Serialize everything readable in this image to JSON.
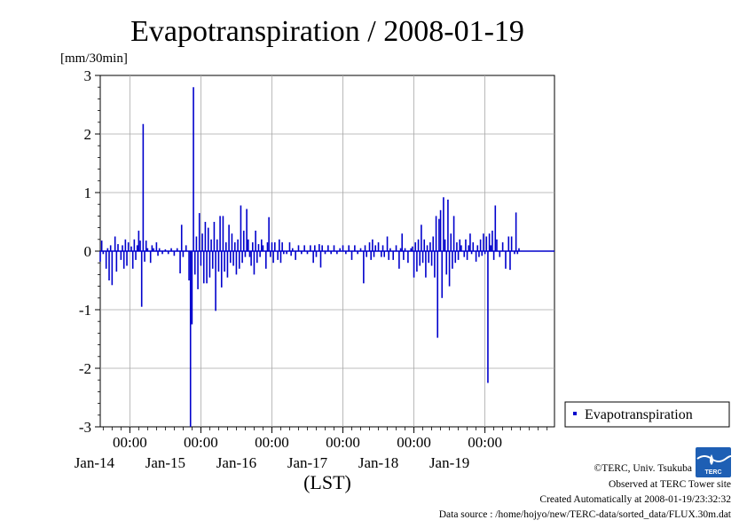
{
  "chart_data": {
    "type": "bar",
    "title": "Evapotranspiration / 2008-01-19",
    "ylabel": "[mm/30min]",
    "xlabel": "(LST)",
    "ylim": [
      -3,
      3
    ],
    "y_ticks": [
      3,
      2,
      1,
      0,
      -1,
      -2,
      -3
    ],
    "y_tick_labels": [
      "3",
      "2",
      "1",
      "0",
      "-1",
      "-2",
      "-3"
    ],
    "xlim": [
      "2008-01-13T14:00",
      "2008-01-19T23:30"
    ],
    "x_ticks": [
      {
        "time": "2008-01-14T00:00",
        "label_time": "00:00",
        "label_date": "Jan-14"
      },
      {
        "time": "2008-01-15T00:00",
        "label_time": "00:00",
        "label_date": "Jan-15"
      },
      {
        "time": "2008-01-16T00:00",
        "label_time": "00:00",
        "label_date": "Jan-16"
      },
      {
        "time": "2008-01-17T00:00",
        "label_time": "00:00",
        "label_date": "Jan-17"
      },
      {
        "time": "2008-01-18T00:00",
        "label_time": "00:00",
        "label_date": "Jan-18"
      },
      {
        "time": "2008-01-19T00:00",
        "label_time": "00:00",
        "label_date": "Jan-19"
      }
    ],
    "grid": true,
    "legend_position": "bottom-right",
    "series": [
      {
        "name": "Evapotranspiration",
        "color": "#0000cc",
        "points": [
          [
            "2008-01-13T14:00",
            -0.18
          ],
          [
            "2008-01-13T14:30",
            0.18
          ],
          [
            "2008-01-13T15:00",
            -0.05
          ],
          [
            "2008-01-13T16:00",
            -0.3
          ],
          [
            "2008-01-13T16:30",
            0.05
          ],
          [
            "2008-01-13T17:00",
            -0.5
          ],
          [
            "2008-01-13T17:30",
            0.1
          ],
          [
            "2008-01-13T18:00",
            -0.58
          ],
          [
            "2008-01-13T19:00",
            0.25
          ],
          [
            "2008-01-13T19:30",
            -0.35
          ],
          [
            "2008-01-13T20:00",
            0.12
          ],
          [
            "2008-01-13T21:00",
            -0.15
          ],
          [
            "2008-01-13T21:30",
            0.1
          ],
          [
            "2008-01-13T22:00",
            -0.3
          ],
          [
            "2008-01-13T22:30",
            0.2
          ],
          [
            "2008-01-13T23:00",
            -0.25
          ],
          [
            "2008-01-13T23:30",
            0.15
          ],
          [
            "2008-01-14T00:30",
            0.08
          ],
          [
            "2008-01-14T01:00",
            -0.3
          ],
          [
            "2008-01-14T01:30",
            0.2
          ],
          [
            "2008-01-14T02:00",
            -0.15
          ],
          [
            "2008-01-14T02:30",
            0.1
          ],
          [
            "2008-01-14T03:00",
            0.35
          ],
          [
            "2008-01-14T03:30",
            0.18
          ],
          [
            "2008-01-14T04:00",
            -0.95
          ],
          [
            "2008-01-14T04:30",
            2.17
          ],
          [
            "2008-01-14T05:00",
            -0.18
          ],
          [
            "2008-01-14T05:30",
            0.18
          ],
          [
            "2008-01-14T06:00",
            0.05
          ],
          [
            "2008-01-14T07:00",
            -0.2
          ],
          [
            "2008-01-14T07:30",
            0.1
          ],
          [
            "2008-01-14T08:00",
            0.05
          ],
          [
            "2008-01-14T09:00",
            0.15
          ],
          [
            "2008-01-14T09:30",
            -0.08
          ],
          [
            "2008-01-14T10:00",
            0.05
          ],
          [
            "2008-01-14T11:00",
            -0.05
          ],
          [
            "2008-01-14T12:00",
            0.03
          ],
          [
            "2008-01-14T13:00",
            -0.05
          ],
          [
            "2008-01-14T14:00",
            0.05
          ],
          [
            "2008-01-14T15:00",
            -0.08
          ],
          [
            "2008-01-14T16:00",
            0.05
          ],
          [
            "2008-01-14T17:00",
            -0.38
          ],
          [
            "2008-01-14T17:30",
            0.45
          ],
          [
            "2008-01-14T18:00",
            -0.1
          ],
          [
            "2008-01-14T19:00",
            0.1
          ],
          [
            "2008-01-14T20:00",
            -0.5
          ],
          [
            "2008-01-14T20:30",
            -3.0
          ],
          [
            "2008-01-14T21:00",
            -1.25
          ],
          [
            "2008-01-14T21:30",
            2.8
          ],
          [
            "2008-01-14T22:00",
            -0.4
          ],
          [
            "2008-01-14T22:30",
            0.25
          ],
          [
            "2008-01-14T23:00",
            -0.65
          ],
          [
            "2008-01-14T23:30",
            0.65
          ],
          [
            "2008-01-15T00:00",
            -0.25
          ],
          [
            "2008-01-15T00:30",
            0.3
          ],
          [
            "2008-01-15T01:00",
            -0.55
          ],
          [
            "2008-01-15T01:30",
            0.5
          ],
          [
            "2008-01-15T02:00",
            -0.55
          ],
          [
            "2008-01-15T02:30",
            0.4
          ],
          [
            "2008-01-15T03:00",
            -0.45
          ],
          [
            "2008-01-15T03:30",
            0.2
          ],
          [
            "2008-01-15T04:00",
            -0.3
          ],
          [
            "2008-01-15T04:30",
            0.5
          ],
          [
            "2008-01-15T05:00",
            -1.02
          ],
          [
            "2008-01-15T05:30",
            0.2
          ],
          [
            "2008-01-15T06:00",
            -0.35
          ],
          [
            "2008-01-15T06:30",
            0.6
          ],
          [
            "2008-01-15T07:00",
            -0.62
          ],
          [
            "2008-01-15T07:30",
            0.6
          ],
          [
            "2008-01-15T08:00",
            -0.35
          ],
          [
            "2008-01-15T08:30",
            0.15
          ],
          [
            "2008-01-15T09:00",
            -0.45
          ],
          [
            "2008-01-15T09:30",
            0.45
          ],
          [
            "2008-01-15T10:00",
            -0.2
          ],
          [
            "2008-01-15T10:30",
            0.3
          ],
          [
            "2008-01-15T11:00",
            -0.25
          ],
          [
            "2008-01-15T11:30",
            0.15
          ],
          [
            "2008-01-15T12:00",
            -0.4
          ],
          [
            "2008-01-15T12:30",
            0.2
          ],
          [
            "2008-01-15T13:00",
            -0.3
          ],
          [
            "2008-01-15T13:30",
            0.78
          ],
          [
            "2008-01-15T14:00",
            -0.2
          ],
          [
            "2008-01-15T14:30",
            0.35
          ],
          [
            "2008-01-15T15:00",
            -0.1
          ],
          [
            "2008-01-15T15:30",
            0.72
          ],
          [
            "2008-01-15T16:00",
            0.2
          ],
          [
            "2008-01-15T16:30",
            -0.1
          ],
          [
            "2008-01-15T17:00",
            -0.25
          ],
          [
            "2008-01-15T17:30",
            0.15
          ],
          [
            "2008-01-15T18:00",
            -0.4
          ],
          [
            "2008-01-15T18:30",
            0.35
          ],
          [
            "2008-01-15T19:00",
            -0.2
          ],
          [
            "2008-01-15T19:30",
            0.12
          ],
          [
            "2008-01-15T20:00",
            -0.1
          ],
          [
            "2008-01-15T20:30",
            0.2
          ],
          [
            "2008-01-15T21:00",
            0.1
          ],
          [
            "2008-01-15T22:00",
            -0.3
          ],
          [
            "2008-01-15T22:30",
            0.15
          ],
          [
            "2008-01-15T23:00",
            0.58
          ],
          [
            "2008-01-15T23:30",
            -0.1
          ],
          [
            "2008-01-16T00:00",
            0.15
          ],
          [
            "2008-01-16T00:30",
            -0.2
          ],
          [
            "2008-01-16T01:00",
            0.15
          ],
          [
            "2008-01-16T02:00",
            -0.15
          ],
          [
            "2008-01-16T02:30",
            0.2
          ],
          [
            "2008-01-16T03:00",
            -0.2
          ],
          [
            "2008-01-16T03:30",
            0.15
          ],
          [
            "2008-01-16T04:00",
            -0.05
          ],
          [
            "2008-01-16T05:00",
            -0.05
          ],
          [
            "2008-01-16T06:00",
            0.15
          ],
          [
            "2008-01-16T06:30",
            -0.08
          ],
          [
            "2008-01-16T07:00",
            0.05
          ],
          [
            "2008-01-16T08:00",
            -0.15
          ],
          [
            "2008-01-16T09:00",
            0.1
          ],
          [
            "2008-01-16T10:00",
            -0.05
          ],
          [
            "2008-01-16T11:00",
            0.1
          ],
          [
            "2008-01-16T12:00",
            -0.05
          ],
          [
            "2008-01-16T13:00",
            0.1
          ],
          [
            "2008-01-16T14:00",
            -0.2
          ],
          [
            "2008-01-16T14:30",
            0.1
          ],
          [
            "2008-01-16T15:00",
            -0.1
          ],
          [
            "2008-01-16T16:00",
            0.12
          ],
          [
            "2008-01-16T16:30",
            -0.28
          ],
          [
            "2008-01-16T17:00",
            0.1
          ],
          [
            "2008-01-16T18:00",
            -0.05
          ],
          [
            "2008-01-16T19:00",
            0.1
          ],
          [
            "2008-01-16T20:00",
            -0.05
          ],
          [
            "2008-01-16T21:00",
            0.1
          ],
          [
            "2008-01-16T22:00",
            -0.05
          ],
          [
            "2008-01-16T23:00",
            0.05
          ],
          [
            "2008-01-17T00:00",
            0.1
          ],
          [
            "2008-01-17T01:00",
            -0.05
          ],
          [
            "2008-01-17T02:00",
            0.1
          ],
          [
            "2008-01-17T03:00",
            -0.15
          ],
          [
            "2008-01-17T04:00",
            0.1
          ],
          [
            "2008-01-17T05:00",
            -0.05
          ],
          [
            "2008-01-17T06:00",
            0.05
          ],
          [
            "2008-01-17T07:00",
            -0.55
          ],
          [
            "2008-01-17T07:30",
            0.1
          ],
          [
            "2008-01-17T08:00",
            -0.1
          ],
          [
            "2008-01-17T09:00",
            0.15
          ],
          [
            "2008-01-17T09:30",
            -0.15
          ],
          [
            "2008-01-17T10:00",
            0.2
          ],
          [
            "2008-01-17T10:30",
            -0.1
          ],
          [
            "2008-01-17T11:00",
            0.1
          ],
          [
            "2008-01-17T12:00",
            0.15
          ],
          [
            "2008-01-17T13:00",
            -0.1
          ],
          [
            "2008-01-17T13:30",
            0.1
          ],
          [
            "2008-01-17T14:00",
            -0.1
          ],
          [
            "2008-01-17T15:00",
            0.25
          ],
          [
            "2008-01-17T15:30",
            -0.15
          ],
          [
            "2008-01-17T16:00",
            0.05
          ],
          [
            "2008-01-17T17:00",
            -0.15
          ],
          [
            "2008-01-17T18:00",
            0.1
          ],
          [
            "2008-01-17T19:00",
            -0.3
          ],
          [
            "2008-01-17T19:30",
            0.05
          ],
          [
            "2008-01-17T20:00",
            0.3
          ],
          [
            "2008-01-17T20:30",
            -0.15
          ],
          [
            "2008-01-17T21:00",
            0.05
          ],
          [
            "2008-01-17T22:00",
            -0.2
          ],
          [
            "2008-01-17T23:00",
            0.05
          ],
          [
            "2008-01-17T23:30",
            0.08
          ],
          [
            "2008-01-18T00:00",
            -0.45
          ],
          [
            "2008-01-18T00:30",
            0.15
          ],
          [
            "2008-01-18T01:00",
            -0.35
          ],
          [
            "2008-01-18T01:30",
            0.2
          ],
          [
            "2008-01-18T02:00",
            -0.25
          ],
          [
            "2008-01-18T02:30",
            0.45
          ],
          [
            "2008-01-18T03:00",
            -0.2
          ],
          [
            "2008-01-18T03:30",
            0.2
          ],
          [
            "2008-01-18T04:00",
            -0.45
          ],
          [
            "2008-01-18T04:30",
            0.1
          ],
          [
            "2008-01-18T05:00",
            -0.2
          ],
          [
            "2008-01-18T05:30",
            0.15
          ],
          [
            "2008-01-18T06:00",
            -0.25
          ],
          [
            "2008-01-18T06:30",
            0.25
          ],
          [
            "2008-01-18T07:00",
            -0.45
          ],
          [
            "2008-01-18T07:30",
            0.6
          ],
          [
            "2008-01-18T08:00",
            -1.48
          ],
          [
            "2008-01-18T08:30",
            0.55
          ],
          [
            "2008-01-18T09:00",
            0.7
          ],
          [
            "2008-01-18T09:30",
            -0.8
          ],
          [
            "2008-01-18T10:00",
            0.92
          ],
          [
            "2008-01-18T10:30",
            0.2
          ],
          [
            "2008-01-18T11:00",
            -0.4
          ],
          [
            "2008-01-18T11:30",
            0.88
          ],
          [
            "2008-01-18T12:00",
            -0.6
          ],
          [
            "2008-01-18T12:30",
            0.3
          ],
          [
            "2008-01-18T13:00",
            -0.3
          ],
          [
            "2008-01-18T13:30",
            0.6
          ],
          [
            "2008-01-18T14:00",
            -0.2
          ],
          [
            "2008-01-18T14:30",
            0.15
          ],
          [
            "2008-01-18T15:00",
            -0.15
          ],
          [
            "2008-01-18T15:30",
            0.2
          ],
          [
            "2008-01-18T16:00",
            0.1
          ],
          [
            "2008-01-18T17:00",
            -0.1
          ],
          [
            "2008-01-18T17:30",
            0.2
          ],
          [
            "2008-01-18T18:00",
            -0.15
          ],
          [
            "2008-01-18T18:30",
            0.1
          ],
          [
            "2008-01-18T19:00",
            0.3
          ],
          [
            "2008-01-18T19:30",
            -0.05
          ],
          [
            "2008-01-18T20:00",
            0.15
          ],
          [
            "2008-01-18T21:00",
            -0.18
          ],
          [
            "2008-01-18T21:30",
            0.1
          ],
          [
            "2008-01-18T22:00",
            -0.1
          ],
          [
            "2008-01-18T22:30",
            0.2
          ],
          [
            "2008-01-18T23:00",
            -0.08
          ],
          [
            "2008-01-18T23:30",
            0.3
          ],
          [
            "2008-01-19T00:00",
            -0.05
          ],
          [
            "2008-01-19T00:30",
            0.25
          ],
          [
            "2008-01-19T01:00",
            -2.25
          ],
          [
            "2008-01-19T01:30",
            0.3
          ],
          [
            "2008-01-19T02:00",
            0.1
          ],
          [
            "2008-01-19T02:30",
            0.35
          ],
          [
            "2008-01-19T03:00",
            -0.15
          ],
          [
            "2008-01-19T03:30",
            0.78
          ],
          [
            "2008-01-19T04:00",
            0.2
          ],
          [
            "2008-01-19T05:00",
            -0.1
          ],
          [
            "2008-01-19T06:00",
            0.15
          ],
          [
            "2008-01-19T07:00",
            -0.3
          ],
          [
            "2008-01-19T08:00",
            0.25
          ],
          [
            "2008-01-19T08:30",
            -0.32
          ],
          [
            "2008-01-19T09:00",
            0.25
          ],
          [
            "2008-01-19T10:00",
            -0.05
          ],
          [
            "2008-01-19T10:30",
            0.66
          ],
          [
            "2008-01-19T11:00",
            -0.05
          ],
          [
            "2008-01-19T11:30",
            0.05
          ]
        ]
      }
    ]
  },
  "footer": {
    "credit": "©TERC, Univ. Tsukuba",
    "observed": "Observed at TERC Tower site",
    "created": "Created Automatically at 2008-01-19/23:32:32",
    "source": "Data source : /home/hojyo/new/TERC-data/sorted_data/FLUX.30m.dat"
  },
  "logo": {
    "text": "TERC",
    "colors": {
      "primary": "#1e5fb4",
      "wave": "#ffffff"
    }
  }
}
